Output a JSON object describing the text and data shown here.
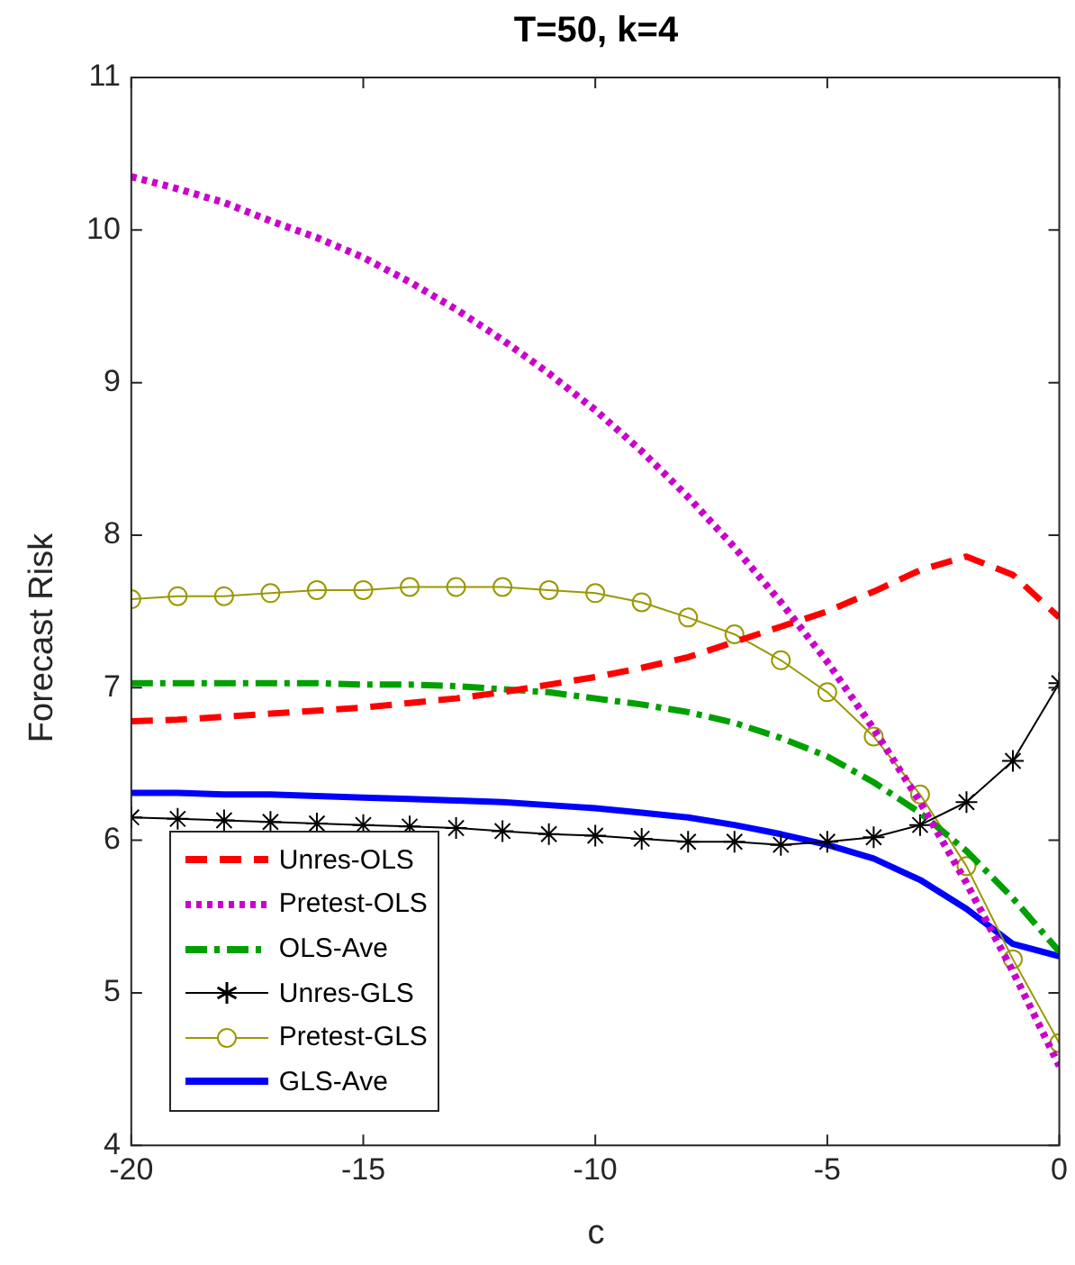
{
  "chart_data": {
    "type": "line",
    "title": "T=50, k=4",
    "xlabel": "c",
    "ylabel": "Forecast Risk",
    "x": [
      -20,
      -19,
      -18,
      -17,
      -16,
      -15,
      -14,
      -13,
      -12,
      -11,
      -10,
      -9,
      -8,
      -7,
      -6,
      -5,
      -4,
      -3,
      -2,
      -1,
      0
    ],
    "xlim": [
      -20,
      0
    ],
    "xticks": [
      -20,
      -15,
      -10,
      -5,
      0
    ],
    "ylim": [
      4,
      11
    ],
    "yticks": [
      4,
      5,
      6,
      7,
      8,
      9,
      10,
      11
    ],
    "grid": false,
    "legend": "bottom left",
    "series": [
      {
        "name": "Unres-OLS",
        "color": "#ff0000",
        "line_style": "dashed",
        "marker": "none",
        "values": [
          6.78,
          6.79,
          6.81,
          6.83,
          6.85,
          6.87,
          6.9,
          6.93,
          6.97,
          7.02,
          7.07,
          7.13,
          7.2,
          7.3,
          7.4,
          7.5,
          7.63,
          7.77,
          7.86,
          7.74,
          7.46
        ]
      },
      {
        "name": "Pretest-OLS",
        "color": "#cc00cc",
        "line_style": "dotted",
        "marker": "none",
        "values": [
          10.35,
          10.27,
          10.18,
          10.06,
          9.95,
          9.82,
          9.66,
          9.48,
          9.28,
          9.06,
          8.82,
          8.55,
          8.25,
          7.92,
          7.56,
          7.17,
          6.73,
          6.25,
          5.72,
          5.14,
          4.52
        ]
      },
      {
        "name": "OLS-Ave",
        "color": "#00a000",
        "line_style": "dashdot",
        "marker": "none",
        "values": [
          7.03,
          7.03,
          7.03,
          7.03,
          7.03,
          7.02,
          7.02,
          7.01,
          6.99,
          6.97,
          6.93,
          6.89,
          6.84,
          6.77,
          6.67,
          6.55,
          6.38,
          6.18,
          5.93,
          5.62,
          5.27
        ]
      },
      {
        "name": "Unres-GLS",
        "color": "#000000",
        "line_style": "solid",
        "marker": "cross",
        "values": [
          6.15,
          6.14,
          6.13,
          6.12,
          6.11,
          6.1,
          6.09,
          6.08,
          6.06,
          6.04,
          6.03,
          6.01,
          5.99,
          5.99,
          5.97,
          5.99,
          6.02,
          6.1,
          6.25,
          6.52,
          7.03
        ]
      },
      {
        "name": "Pretest-GLS",
        "color": "#999900",
        "line_style": "solid",
        "marker": "circle",
        "values": [
          7.58,
          7.6,
          7.6,
          7.62,
          7.64,
          7.64,
          7.66,
          7.66,
          7.66,
          7.64,
          7.62,
          7.56,
          7.46,
          7.35,
          7.18,
          6.97,
          6.68,
          6.3,
          5.83,
          5.22,
          4.67
        ]
      },
      {
        "name": "GLS-Ave",
        "color": "#0000ff",
        "line_style": "solid",
        "marker": "none",
        "values": [
          6.31,
          6.31,
          6.3,
          6.3,
          6.29,
          6.28,
          6.27,
          6.26,
          6.25,
          6.23,
          6.21,
          6.18,
          6.15,
          6.1,
          6.04,
          5.97,
          5.88,
          5.74,
          5.55,
          5.32,
          5.24
        ]
      }
    ]
  }
}
